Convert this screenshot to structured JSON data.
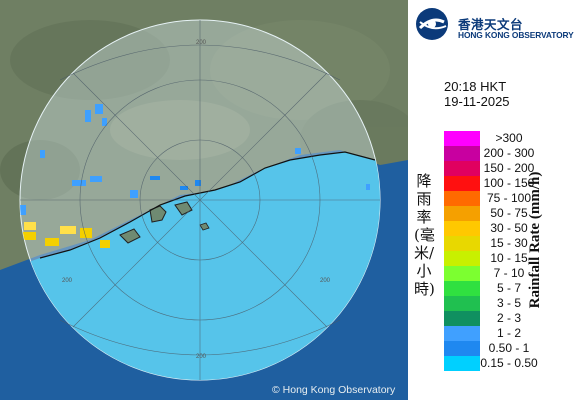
{
  "organization": {
    "name_zh": "香港天文台",
    "name_en": "HONG KONG OBSERVATORY"
  },
  "timestamp": {
    "time": "20:18 HKT",
    "date": "19-11-2025"
  },
  "legend": {
    "title_zh": "降雨率(毫米/小時)",
    "title_en": "Rainfall Rate (mm/h)",
    "items": [
      {
        "label": ">300",
        "color": "#ff00ff"
      },
      {
        "label": "200 - 300",
        "color": "#c800a0"
      },
      {
        "label": "150 - 200",
        "color": "#e00060"
      },
      {
        "label": "100 - 150",
        "color": "#ff1010"
      },
      {
        "label": "75 - 100",
        "color": "#ff6a00"
      },
      {
        "label": "50 - 75",
        "color": "#f5a000"
      },
      {
        "label": "30 - 50",
        "color": "#ffc800"
      },
      {
        "label": "15 - 30",
        "color": "#e8d800"
      },
      {
        "label": "10 - 15",
        "color": "#c8f000"
      },
      {
        "label": "7 - 10",
        "color": "#7cff30"
      },
      {
        "label": "5 - 7",
        "color": "#30e040"
      },
      {
        "label": "3 - 5",
        "color": "#20c050"
      },
      {
        "label": "2 - 3",
        "color": "#109060"
      },
      {
        "label": "1 - 2",
        "color": "#40a0ff"
      },
      {
        "label": "0.50 - 1",
        "color": "#1f88f0"
      },
      {
        "label": "0.15 - 0.50",
        "color": "#00d0ff"
      }
    ]
  },
  "map": {
    "range_labels": [
      "200",
      "200",
      "200",
      "200"
    ],
    "copyright": "© Hong Kong Observatory"
  }
}
